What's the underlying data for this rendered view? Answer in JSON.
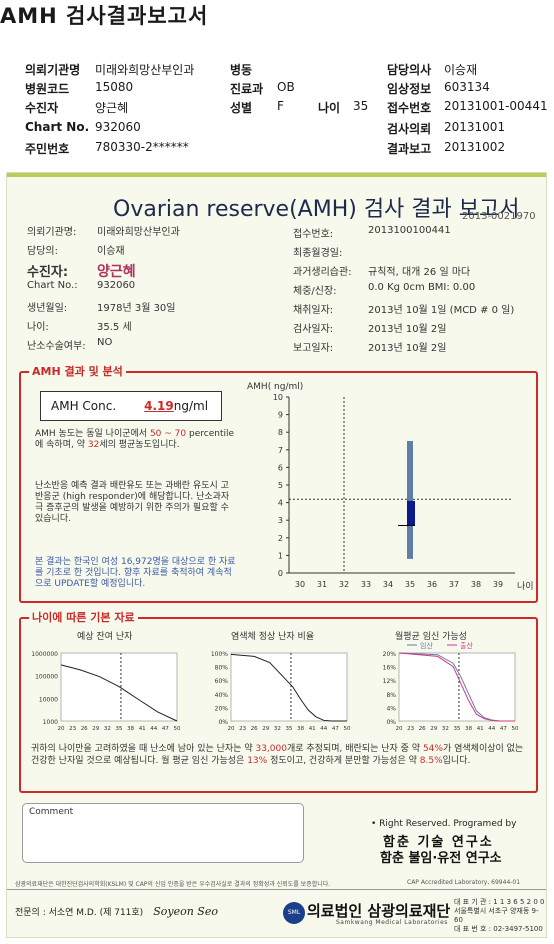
{
  "top": {
    "title": "AMH 검사결과보고서",
    "fields": [
      {
        "label": "의뢰기관명",
        "value": "미래와희망산부인과"
      },
      {
        "label": "병원코드",
        "value": "15080"
      },
      {
        "label": "수진자",
        "value": "양근혜"
      },
      {
        "label": "Chart No.",
        "value": "932060"
      },
      {
        "label": "주민번호",
        "value": "780330-2******"
      },
      {
        "label": "병동",
        "value": ""
      },
      {
        "label": "진료과",
        "value": "OB"
      },
      {
        "label": "성별",
        "value": "F"
      },
      {
        "label": "나이",
        "value": "35"
      },
      {
        "label": "담당의사",
        "value": "이승재"
      },
      {
        "label": "임상정보",
        "value": "603134"
      },
      {
        "label": "접수번호",
        "value": "20131001-00441"
      },
      {
        "label": "검사의뢰",
        "value": "20131001"
      },
      {
        "label": "결과보고",
        "value": "20131002"
      }
    ]
  },
  "card": {
    "title": "Ovarian reserve(AMH) 검사 결과 보고서",
    "doc_no": "2013-0021970",
    "left_fields": [
      {
        "label": "의뢰기관명:",
        "value": "미래와희망산부인과"
      },
      {
        "label": "담당의:",
        "value": "이승재"
      },
      {
        "label": "수진자:",
        "value": "양근혜"
      },
      {
        "label": "Chart No.:",
        "value": "932060"
      },
      {
        "label": "생년월일:",
        "value": "1978년 3월 30일"
      },
      {
        "label": "나이:",
        "value": "35.5 세"
      },
      {
        "label": "난소수술여부:",
        "value": "NO"
      }
    ],
    "right_fields": [
      {
        "label": "접수번호:",
        "value": "2013100100441"
      },
      {
        "label": "최종월경일:",
        "value": ""
      },
      {
        "label": "과거생리습관:",
        "value": "규칙적, 대개   26 일 마다"
      },
      {
        "label": "체중/신장:",
        "value": "0.0 Kg        0cm    BMI:    0.00"
      },
      {
        "label": "채취일자:",
        "value": "2013년 10월 1일   (MCD #  0 일)"
      },
      {
        "label": "검사일자:",
        "value": "2013년 10월 2일"
      },
      {
        "label": "보고일자:",
        "value": "2013년 10월 2일"
      }
    ],
    "section1_label": "AMH 결과 및 분석",
    "amh_label": "AMH Conc.",
    "amh_value": "4.19",
    "amh_unit": "ng/ml",
    "para1_a": "AMH 농도는 동일 나이군에서",
    "para1_range": "50 ~ 70",
    "para1_b": "percentile에 속하며, 약",
    "para1_age": "32",
    "para1_c": "세의 평균농도입니다.",
    "para2": "난소반응 예측 결과 배란유도 또는 과배란 유도시 고반응군 (high responder)에 해당합니다. 난소과자극 증후군의 발생을 예방하기 위한 주의가 필요할 수 있습니다.",
    "para3": "본 결과는 한국인 여성 16,972명을 대상으로 한 자료를 기초로 한 것입니다. 향후 자료를 축적하여 계속적으로 UPDATE할 예정입니다.",
    "section2_label": "나이에 따른 기본 자료",
    "mini1_title": "예상 잔여 난자",
    "mini2_title": "염색체 정상 난자 비율",
    "mini3_title": "월평균 임신 가능성",
    "mini3_legend_a": "임산",
    "mini3_legend_b": "출산",
    "para4_a": "귀하의 나이만을 고려하였을 때 난소에 남아 있는 난자는 약",
    "para4_eggs": "33,000",
    "para4_b": "개로 추정되며, 배란되는 난자 중 약",
    "para4_pct1": "54%",
    "para4_c": "가 염색체이상이 없는 건강한 난자일 것으로 예상됩니다. 월 평균 임신 가능성은",
    "para4_pct2": "13%",
    "para4_d": "정도이고, 건강하게 분만할 가능성은 약",
    "para4_pct3": "8.5%",
    "para4_e": "입니다.",
    "comment_label": "Comment",
    "rights": "• Right Reserved. Programed by",
    "org1": "함춘 기술 연구소",
    "org2": "함춘 불임·유전 연구소",
    "footer_note": "삼광의료재단은 대한진단검사의학회(KSLM) 및 CAP의 신임 인증을 받은 우수검사실로 결과의 정확성과 신뢰도를 보증합니다.",
    "cap": "CAP Accredited Laboratory,  69944-01",
    "sign_label": "전문의 : 서소연 M.D. (제 711호)",
    "sign_script": "Soyeon Seo",
    "logo_circle": "SML",
    "logo_name": "의료법인 삼광의료재단",
    "logo_sub": "Samkwang Medical Laboratories",
    "addr1": "대 표 기 관 : 1 1 3 6 5 2 0 0",
    "addr2": "서울특별시 서초구 양재동 9-60",
    "addr3": "대 표 번 호 : 02-3497-5100"
  },
  "chart_data": [
    {
      "type": "bar",
      "title": "",
      "ylabel": "AMH( ng/ml)",
      "xlabel": "나이",
      "x_ticks": [
        30,
        31,
        32,
        33,
        34,
        35,
        36,
        37,
        38,
        39
      ],
      "y_ticks": [
        0,
        1,
        2,
        3,
        4,
        5,
        6,
        7,
        8,
        9,
        10
      ],
      "ylim": [
        0,
        10
      ],
      "xlim": [
        29.5,
        39.5
      ],
      "range_bar": {
        "x": 35,
        "low": 0.8,
        "high": 7.5
      },
      "iqr_box": {
        "x": 35,
        "low": 2.7,
        "high": 4.1
      },
      "patient_value": 4.19,
      "patient_age": 35.5,
      "ref_age_line": 32,
      "colors": {
        "range": "#5e7fa8",
        "box": "#0b1a8c"
      }
    },
    {
      "type": "line",
      "title": "예상 잔여 난자",
      "x_ticks": [
        20,
        23,
        26,
        29,
        32,
        35,
        38,
        41,
        44,
        47,
        50
      ],
      "y_ticks": [
        "1000",
        "10000",
        "100000",
        "1000000"
      ],
      "log_y": true,
      "series": [
        {
          "x": [
            20,
            25,
            30,
            35,
            40,
            45,
            50
          ],
          "values": [
            300000,
            180000,
            90000,
            33000,
            9000,
            2500,
            1000
          ]
        }
      ],
      "marker_age": 35.5
    },
    {
      "type": "line",
      "title": "염색체 정상 난자 비율",
      "x_ticks": [
        20,
        23,
        26,
        29,
        32,
        35,
        38,
        41,
        44,
        47,
        50
      ],
      "y_ticks": [
        "0%",
        "20%",
        "40%",
        "60%",
        "80%",
        "100%"
      ],
      "series": [
        {
          "x": [
            20,
            26,
            30,
            34,
            36,
            38,
            40,
            42,
            44,
            46,
            50
          ],
          "values": [
            98,
            95,
            86,
            62,
            50,
            32,
            16,
            6,
            1,
            0,
            0
          ]
        }
      ],
      "marker_age": 35.5
    },
    {
      "type": "line",
      "title": "월평균 임신 가능성",
      "x_ticks": [
        20,
        23,
        26,
        29,
        32,
        35,
        38,
        41,
        44,
        47,
        50
      ],
      "y_ticks": [
        "0%",
        "4%",
        "8%",
        "12%",
        "16%",
        "20%"
      ],
      "series": [
        {
          "name": "임산",
          "x": [
            20,
            30,
            34,
            36,
            38,
            40,
            42,
            44,
            46,
            50
          ],
          "values": [
            20,
            19.5,
            17,
            13,
            8,
            3,
            1,
            0.3,
            0,
            0
          ]
        },
        {
          "name": "출산",
          "x": [
            20,
            30,
            34,
            36,
            38,
            40,
            42,
            44,
            46,
            50
          ],
          "values": [
            20,
            19,
            16,
            11,
            6,
            2,
            0.7,
            0.2,
            0,
            0
          ]
        }
      ],
      "marker_age": 35.5
    }
  ]
}
